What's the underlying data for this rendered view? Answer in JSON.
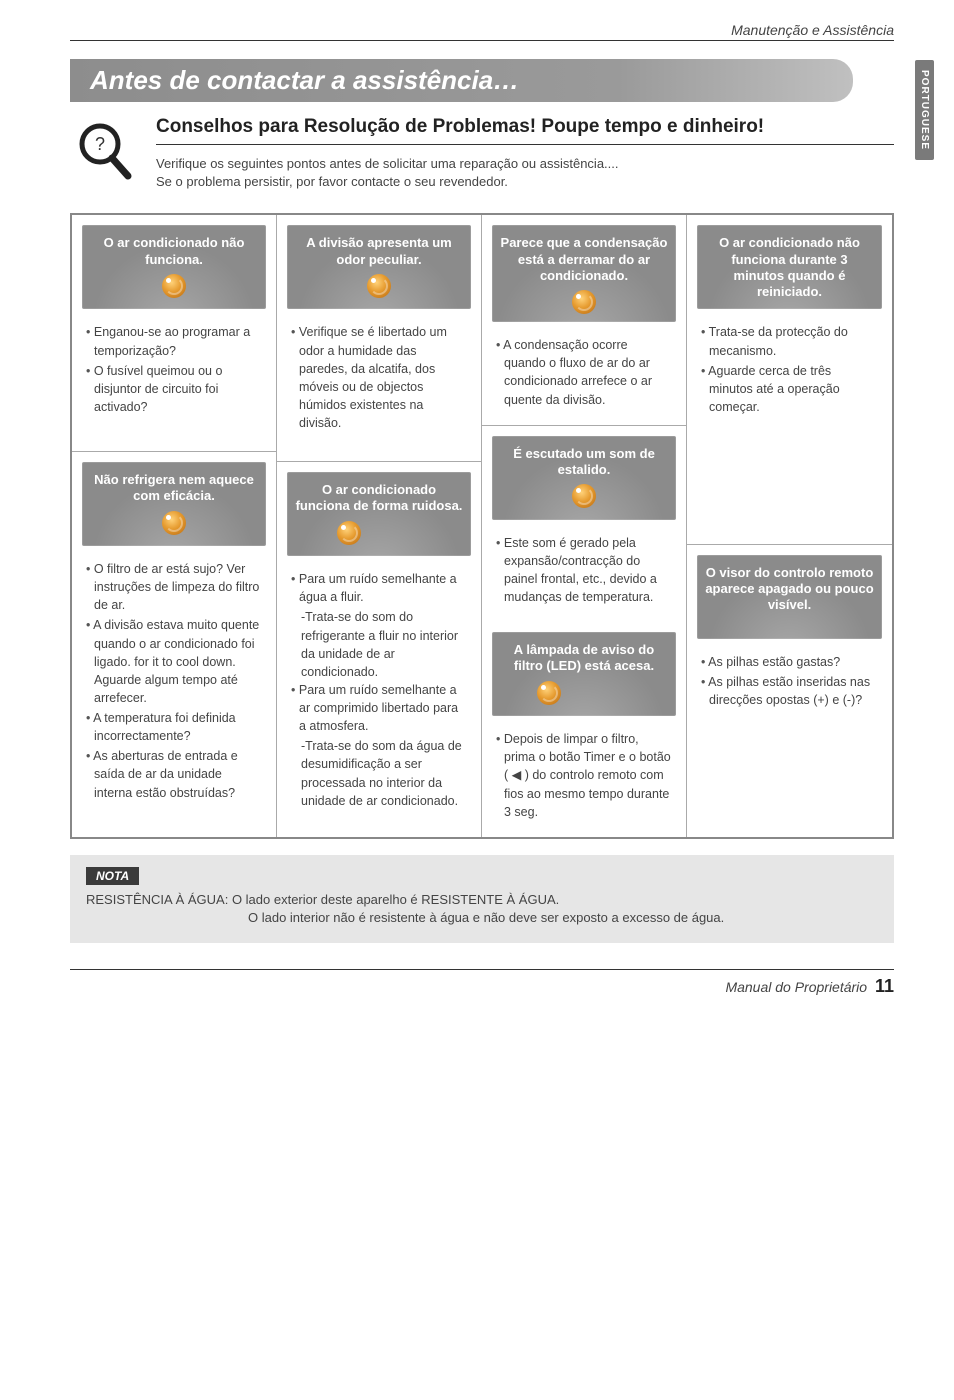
{
  "header": {
    "section": "Manutenção e Assistência",
    "side_tab": "PORTUGUESE"
  },
  "banner": "Antes de contactar a assistência…",
  "intro": {
    "title": "Conselhos para Resolução de Problemas! Poupe tempo e dinheiro!",
    "desc1": "Verifique os seguintes pontos antes de solicitar uma reparação ou assistência....",
    "desc2": "Se o problema persistir, por favor contacte o seu revendedor."
  },
  "row1": {
    "c1": {
      "title": "O ar condicionado não funciona.",
      "bullets": [
        "Enganou-se ao programar a temporização?",
        "O fusível queimou ou o disjuntor de circuito foi activado?"
      ]
    },
    "c2": {
      "title": "A divisão apresenta um odor peculiar.",
      "bullets": [
        "Verifique se é libertado um odor a humidade das paredes, da alcatifa, dos móveis ou de objectos húmidos existentes na divisão."
      ]
    },
    "c3": {
      "title": "Parece que a condensação está a derramar do ar condicionado.",
      "bullets": [
        "A condensação ocorre quando o fluxo de ar do ar condicionado arrefece o ar quente da divisão."
      ]
    },
    "c4": {
      "title": "O ar condicionado não funciona durante 3 minutos quando é reiniciado.",
      "bullets": [
        "Trata-se da protecção do mecanismo.",
        "Aguarde cerca de três minutos até a operação começar."
      ]
    }
  },
  "row2": {
    "c1": {
      "title": "Não refrigera nem aquece com eficácia.",
      "bullets": [
        "O filtro de ar está sujo? Ver instruções de limpeza do filtro de ar.",
        "A divisão estava muito quente quando o ar condicionado foi ligado.  for it to cool down. Aguarde algum tempo até arrefecer.",
        "A temperatura foi definida incorrectamente?",
        "As aberturas de entrada e saída de ar da unidade interna estão obstruídas?"
      ]
    },
    "c2": {
      "title": "O ar condicionado funciona de forma ruidosa.",
      "bullets": [
        "Para um ruído semelhante a água a fluir.",
        "Para um ruído semelhante a ar comprimido libertado para a atmosfera."
      ],
      "sub1": "-Trata-se do som do refrigerante a fluir no interior da unidade de ar condicionado.",
      "sub2": "-Trata-se do som da água de desumidificação a ser processada no interior da unidade de ar condicionado."
    },
    "c3a": {
      "title": "É escutado um som de estalido.",
      "bullets": [
        "Este som é gerado pela expansão/contracção do painel frontal, etc., devido a mudanças de temperatura."
      ]
    },
    "c3b": {
      "title": "A lâmpada de aviso do filtro (LED) está acesa.",
      "bullets": [
        "Depois de limpar o filtro, prima o botão Timer e o botão ( ◀ ) do controlo remoto com fios ao mesmo tempo durante 3 seg."
      ]
    },
    "c4": {
      "title": "O visor do controlo remoto aparece apagado ou pouco visível.",
      "bullets": [
        "As pilhas estão gastas?",
        "As pilhas estão inseridas nas direcções opostas (+) e (-)?"
      ]
    }
  },
  "nota": {
    "label": "NOTA",
    "line1a": "RESISTÊNCIA À ÁGUA: ",
    "line1b": "O lado exterior deste aparelho é RESISTENTE À ÁGUA.",
    "line2": "O lado interior não é resistente à água e não deve ser exposto a excesso de água."
  },
  "footer": {
    "manual": "Manual do Proprietário",
    "page": "11"
  },
  "colors": {
    "banner_bg": "#8d8d8d",
    "card_bg": "#8b8b8b",
    "swirl_center": "#ffd27a",
    "swirl_edge": "#b86a12",
    "nota_bg": "#e6e6e6",
    "nota_label_bg": "#3a3a3a"
  }
}
